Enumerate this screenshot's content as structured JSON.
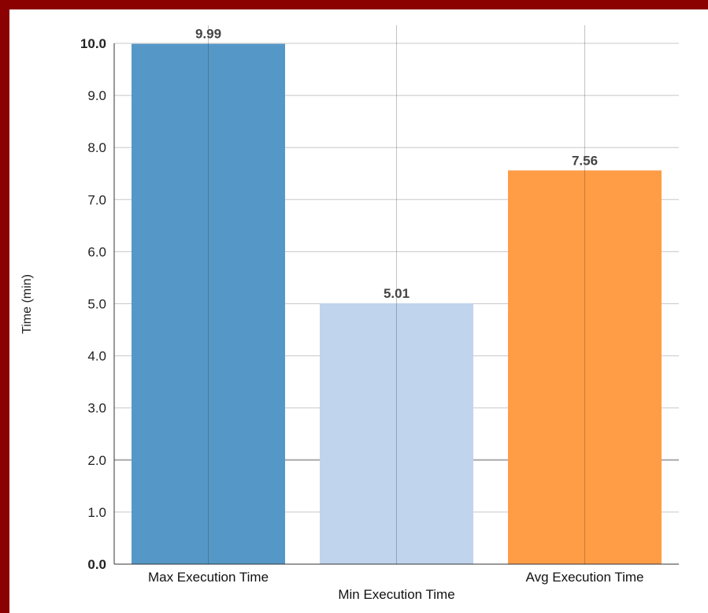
{
  "chart_data": {
    "type": "bar",
    "categories": [
      "Max Execution Time",
      "Min Execution Time",
      "Avg Execution Time"
    ],
    "values": [
      9.99,
      5.01,
      7.56
    ],
    "value_labels": [
      "9.99",
      "5.01",
      "7.56"
    ],
    "colors": [
      "#5598c8",
      "#c0d4ed",
      "#ff9d47"
    ],
    "ylabel": "Time (min)",
    "xlabel": "",
    "ylim": [
      0,
      10
    ],
    "yticks": [
      "0.0",
      "1.0",
      "2.0",
      "3.0",
      "4.0",
      "5.0",
      "6.0",
      "7.0",
      "8.0",
      "9.0",
      "10.0"
    ],
    "grid": true,
    "legend": "none"
  }
}
